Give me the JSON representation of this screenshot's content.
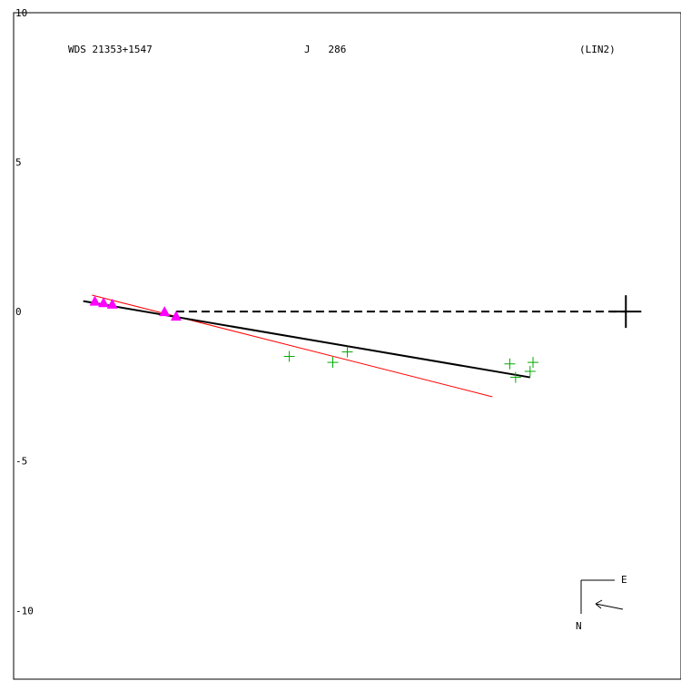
{
  "chart_data": {
    "type": "scatter",
    "title": "",
    "header": {
      "left": "WDS 21353+1547",
      "center": "J   286",
      "right": "(LIN2)"
    },
    "xlim": [
      -0.5,
      22.5
    ],
    "ylim": [
      -12.3,
      10.0
    ],
    "y_ticks": [
      10,
      5,
      0,
      -5,
      -10
    ],
    "y_tick_labels": [
      "10",
      "5",
      "0",
      "-5",
      "-10"
    ],
    "grid": false,
    "colors": {
      "triangles": "#ff00ff",
      "crosses": "#00aa00",
      "fit_red": "#ff0000",
      "fit_black": "#000000"
    },
    "series": [
      {
        "marker": "triangle",
        "points": [
          [
            2.3,
            0.35
          ],
          [
            2.6,
            0.3
          ],
          [
            2.9,
            0.25
          ],
          [
            4.7,
            0.0
          ],
          [
            5.1,
            -0.15
          ]
        ]
      },
      {
        "marker": "plus",
        "points": [
          [
            9.0,
            -1.5
          ],
          [
            10.5,
            -1.7
          ],
          [
            11.0,
            -1.35
          ],
          [
            16.6,
            -1.75
          ],
          [
            16.8,
            -2.2
          ],
          [
            17.3,
            -2.0
          ],
          [
            17.4,
            -1.7
          ]
        ]
      }
    ],
    "lines": [
      {
        "style": "solid-red",
        "points": [
          [
            2.2,
            0.55
          ],
          [
            16.0,
            -2.85
          ]
        ]
      },
      {
        "style": "solid-black",
        "points": [
          [
            1.9,
            0.35
          ],
          [
            17.3,
            -2.2
          ]
        ]
      },
      {
        "style": "dashed-black",
        "points": [
          [
            5.1,
            0.0
          ],
          [
            20.6,
            0.0
          ]
        ]
      }
    ],
    "primary_marker": {
      "marker": "large-plus",
      "point": [
        20.6,
        0.0
      ]
    },
    "compass": {
      "east_label": "E",
      "north_label": "N"
    }
  }
}
